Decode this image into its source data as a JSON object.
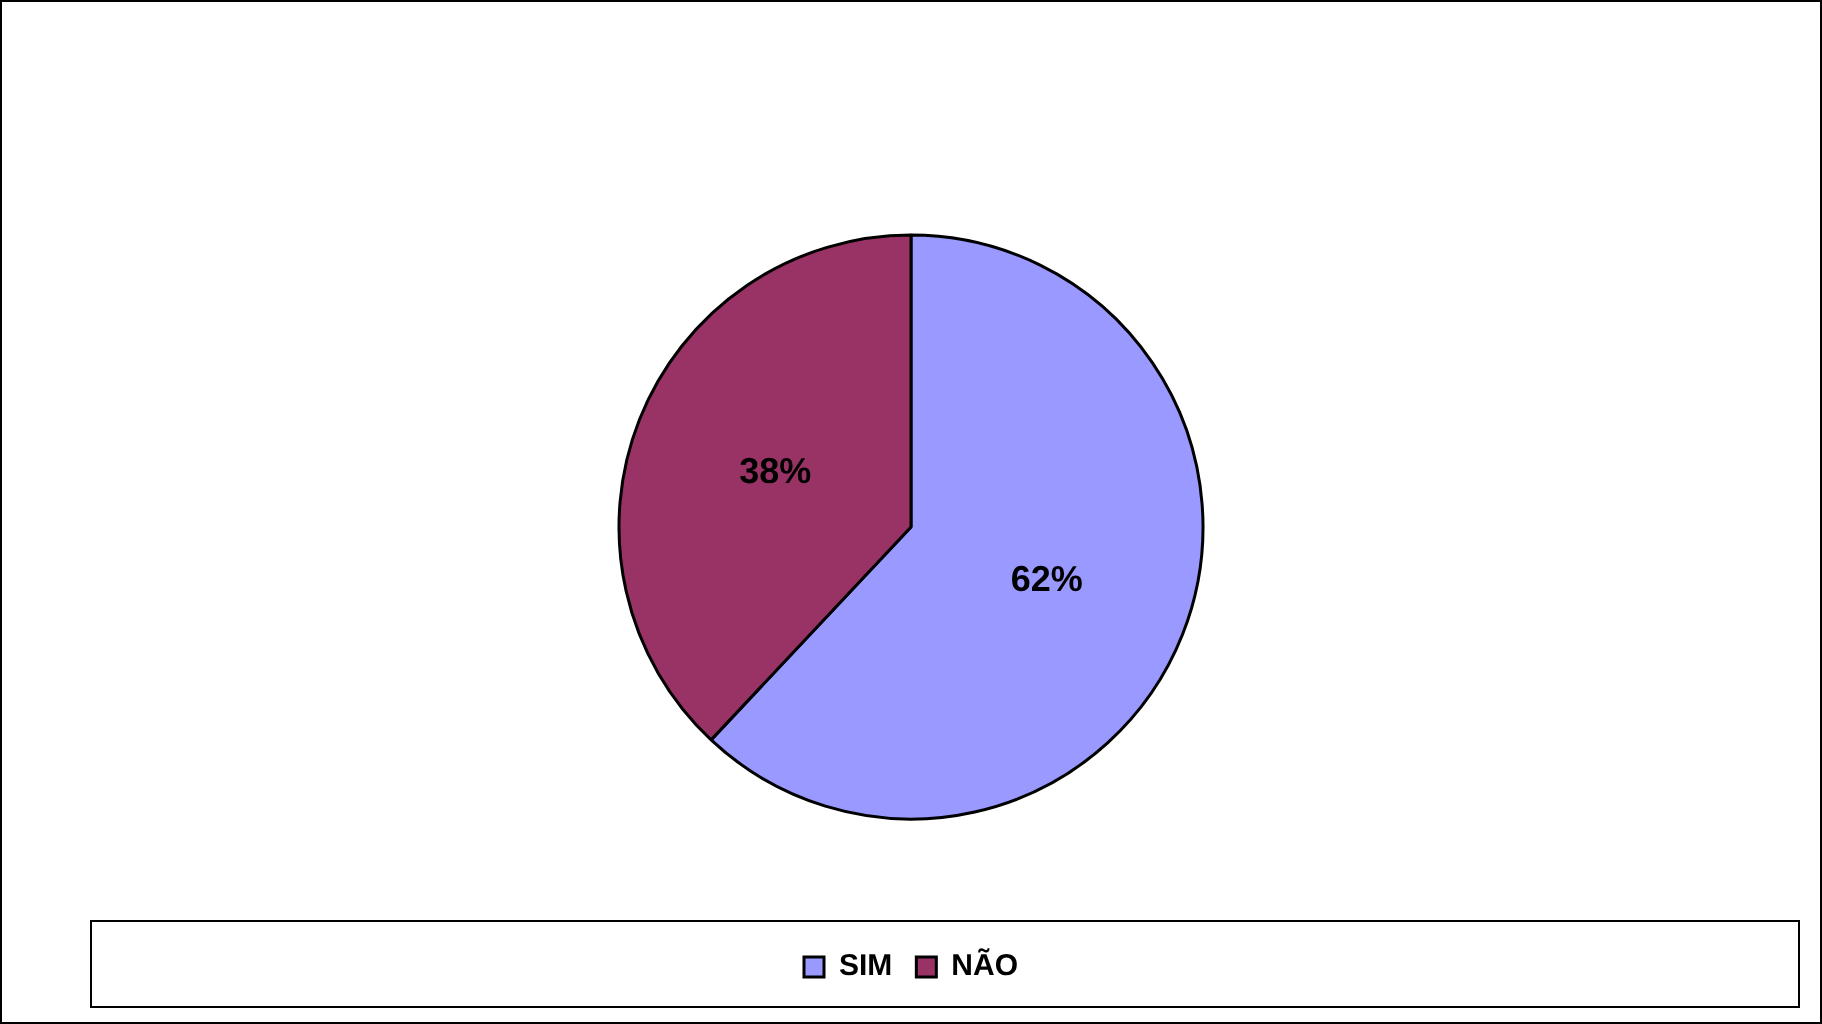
{
  "chart_data": {
    "type": "pie",
    "categories": [
      "SIM",
      "NÃO"
    ],
    "values": [
      62,
      38
    ],
    "colors": [
      "#9999ff",
      "#993366"
    ],
    "value_labels": [
      "62%",
      "38%"
    ],
    "legend": "bottom"
  }
}
